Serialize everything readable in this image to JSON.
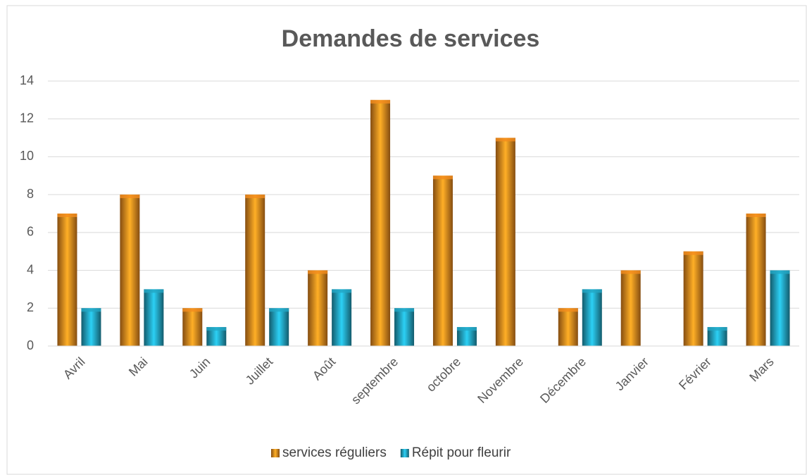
{
  "chart_data": {
    "type": "bar",
    "title": "Demandes de services",
    "categories": [
      "Avril",
      "Mai",
      "Juin",
      "Juillet",
      "Août",
      "septembre",
      "octobre",
      "Novembre",
      "Décembre",
      "Janvier",
      "Février",
      "Mars"
    ],
    "series": [
      {
        "name": "services réguliers",
        "color": "#f28c1e",
        "values": [
          7,
          8,
          2,
          8,
          4,
          13,
          9,
          11,
          2,
          4,
          5,
          7
        ]
      },
      {
        "name": "Répit pour fleurir",
        "color": "#23a6c4",
        "values": [
          2,
          3,
          1,
          2,
          3,
          2,
          1,
          0,
          3,
          0,
          1,
          4
        ]
      }
    ],
    "ylim": [
      0,
      14
    ],
    "yticks": [
      0,
      2,
      4,
      6,
      8,
      10,
      12,
      14
    ],
    "grid": true,
    "legend": "bottom"
  }
}
